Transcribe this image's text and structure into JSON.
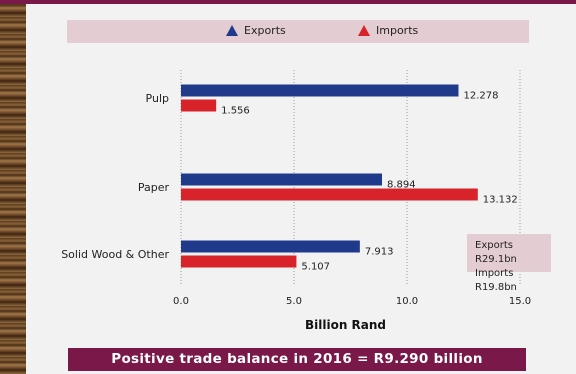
{
  "legend": {
    "exports_label": "Exports",
    "imports_label": "Imports"
  },
  "summary": {
    "exports": "Exports R29.1bn",
    "imports": "Imports R19.8bn"
  },
  "footer": {
    "text": "Positive trade balance in 2016  = R9.290 billion"
  },
  "colors": {
    "exports": "#1f3a8a",
    "imports": "#d8232a",
    "accent": "#7a1849",
    "legend_bg": "#e4cdd2"
  },
  "chart_data": {
    "type": "bar",
    "orientation": "horizontal",
    "categories": [
      "Pulp",
      "Paper",
      "Solid Wood & Other"
    ],
    "series": [
      {
        "name": "Exports",
        "values": [
          12.278,
          8.894,
          7.913
        ],
        "labels": [
          "12.278",
          "8.894",
          "7.913"
        ]
      },
      {
        "name": "Imports",
        "values": [
          1.556,
          13.132,
          5.107
        ],
        "labels": [
          "1.556",
          "13.132",
          "5.107"
        ]
      }
    ],
    "xlabel": "Billion Rand",
    "xlim": [
      0,
      15
    ],
    "xticks": [
      "0.0",
      "5.0",
      "10.0",
      "15.0"
    ],
    "grid": "vertical dotted",
    "legend": "top"
  }
}
